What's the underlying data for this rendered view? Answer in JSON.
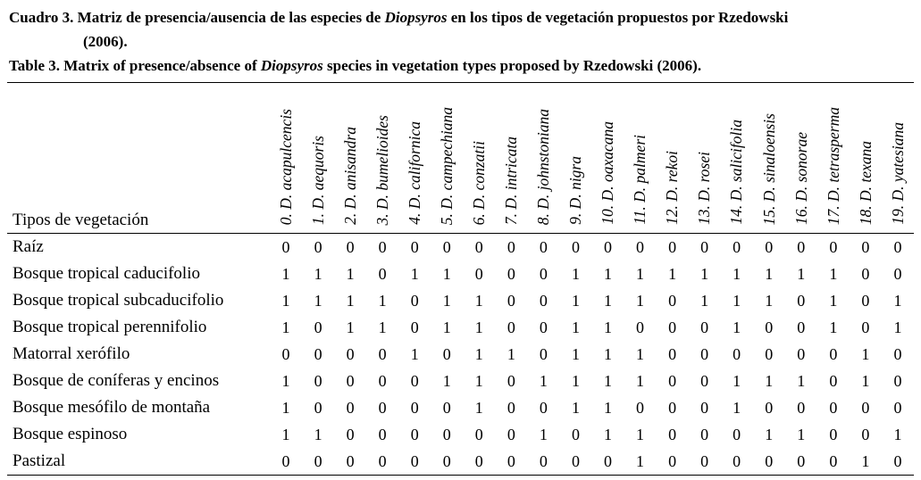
{
  "captions": {
    "spanish": {
      "line1_before_genus": "Cuadro 3. Matriz de presencia/ausencia de las especies de ",
      "genus": "Diopsyros",
      "line1_after_genus": " en los tipos de vegetación propuestos por Rzedowski",
      "line2": "(2006)."
    },
    "english": {
      "before_genus": "Table 3. Matrix of presence/absence of ",
      "genus": "Diopsyros",
      "after_genus": " species in vegetation types proposed by Rzedowski (2006)."
    }
  },
  "table": {
    "corner_header": "Tipos de vegetación",
    "species_columns": [
      "0. D. acapulcencis",
      "1. D. aequoris",
      "2. D. anisandra",
      "3. D. bumelioides",
      "4. D. californica",
      "5. D. campechiana",
      "6. D. conzatii",
      "7. D. intricata",
      "8. D. johnstoniana",
      "9. D. nigra",
      "10. D. oaxacana",
      "11. D. palmeri",
      "12. D. rekoi",
      "13. D. rosei",
      "14. D. salicifolia",
      "15. D. sinaloensis",
      "16. D. sonorae",
      "17. D. tetrasperma",
      "18. D. texana",
      "19. D. yatesiana"
    ],
    "rows": [
      {
        "label": "Raíz",
        "values": [
          0,
          0,
          0,
          0,
          0,
          0,
          0,
          0,
          0,
          0,
          0,
          0,
          0,
          0,
          0,
          0,
          0,
          0,
          0,
          0
        ]
      },
      {
        "label": "Bosque tropical caducifolio",
        "values": [
          1,
          1,
          1,
          0,
          1,
          1,
          0,
          0,
          0,
          1,
          1,
          1,
          1,
          1,
          1,
          1,
          1,
          1,
          0,
          0
        ]
      },
      {
        "label": "Bosque tropical subcaducifolio",
        "values": [
          1,
          1,
          1,
          1,
          0,
          1,
          1,
          0,
          0,
          1,
          1,
          1,
          0,
          1,
          1,
          1,
          0,
          1,
          0,
          1
        ]
      },
      {
        "label": "Bosque tropical perennifolio",
        "values": [
          1,
          0,
          1,
          1,
          0,
          1,
          1,
          0,
          0,
          1,
          1,
          0,
          0,
          0,
          1,
          0,
          0,
          1,
          0,
          1
        ]
      },
      {
        "label": "Matorral xerófilo",
        "values": [
          0,
          0,
          0,
          0,
          1,
          0,
          1,
          1,
          0,
          1,
          1,
          1,
          0,
          0,
          0,
          0,
          0,
          0,
          1,
          0
        ]
      },
      {
        "label": "Bosque de coníferas y encinos",
        "values": [
          1,
          0,
          0,
          0,
          0,
          1,
          1,
          0,
          1,
          1,
          1,
          1,
          0,
          0,
          1,
          1,
          1,
          0,
          1,
          0
        ]
      },
      {
        "label": "Bosque mesófilo de montaña",
        "values": [
          1,
          0,
          0,
          0,
          0,
          0,
          1,
          0,
          0,
          1,
          1,
          0,
          0,
          0,
          1,
          0,
          0,
          0,
          0,
          0
        ]
      },
      {
        "label": "Bosque espinoso",
        "values": [
          1,
          1,
          0,
          0,
          0,
          0,
          0,
          0,
          1,
          0,
          1,
          1,
          0,
          0,
          0,
          1,
          1,
          0,
          0,
          1
        ]
      },
      {
        "label": "Pastizal",
        "values": [
          0,
          0,
          0,
          0,
          0,
          0,
          0,
          0,
          0,
          0,
          0,
          1,
          0,
          0,
          0,
          0,
          0,
          0,
          1,
          0
        ]
      }
    ]
  },
  "colors": {
    "text": "#000000",
    "background": "#ffffff",
    "rule": "#000000"
  }
}
